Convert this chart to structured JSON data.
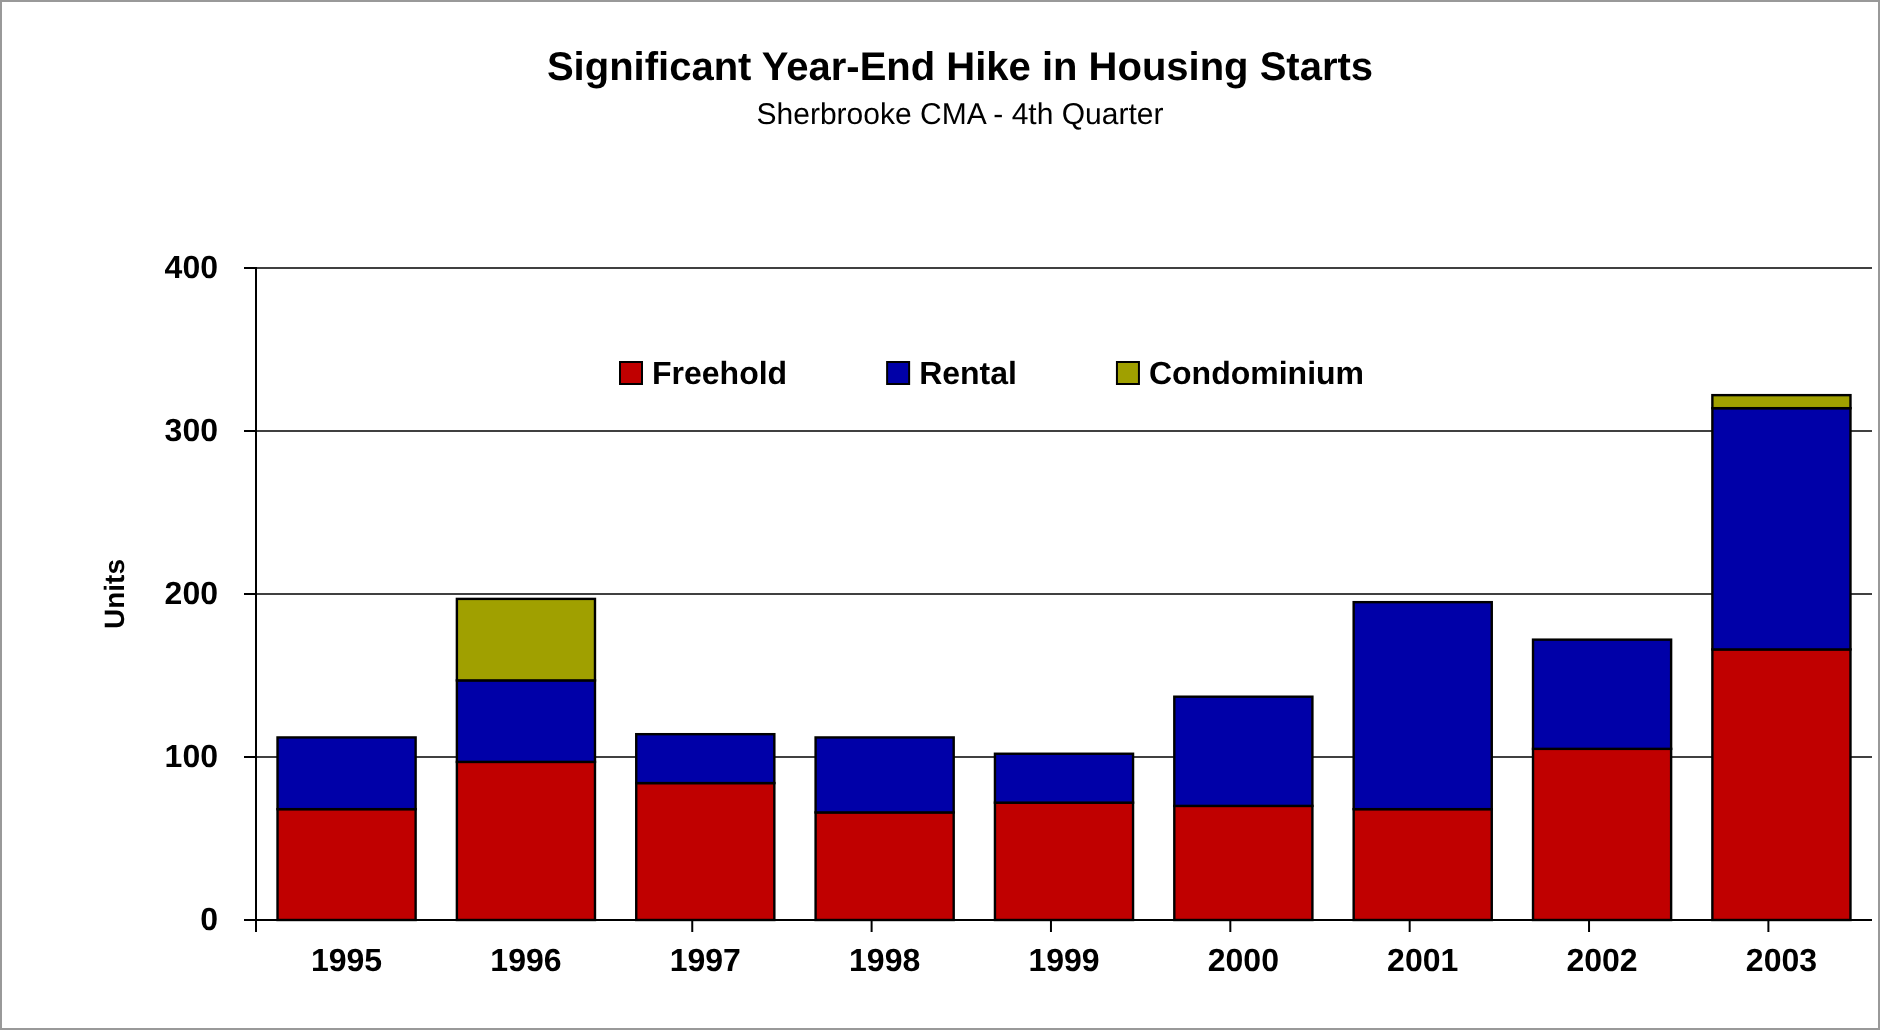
{
  "chart_data": {
    "type": "bar",
    "title": "Significant Year-End Hike in Housing Starts",
    "subtitle": "Sherbrooke CMA - 4th Quarter",
    "ylabel": "Units",
    "categories": [
      "1995",
      "1996",
      "1997",
      "1998",
      "1999",
      "2000",
      "2001",
      "2002",
      "2003"
    ],
    "stacked": true,
    "series": [
      {
        "name": "Freehold",
        "color": "#c00000",
        "values": [
          68,
          97,
          84,
          66,
          72,
          70,
          68,
          105,
          166
        ]
      },
      {
        "name": "Rental",
        "color": "#0000a8",
        "values": [
          44,
          50,
          30,
          46,
          30,
          67,
          127,
          67,
          148
        ]
      },
      {
        "name": "Condominium",
        "color": "#a0a000",
        "values": [
          0,
          50,
          0,
          0,
          0,
          0,
          0,
          0,
          8
        ]
      }
    ],
    "ylim": [
      0,
      400
    ],
    "yticks": [
      0,
      100,
      200,
      300,
      400
    ],
    "grid": "y",
    "legend": "top"
  }
}
